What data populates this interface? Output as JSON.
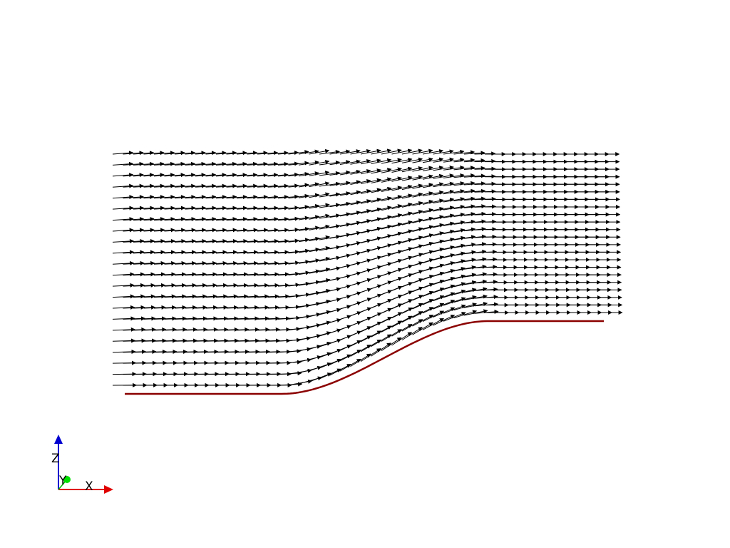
{
  "scene": {
    "background_color": "#ffffff",
    "vector_color": "#000000",
    "surface_color": "#8b0000"
  },
  "orientation_axes": {
    "x": {
      "label": "X",
      "color": "#e00000"
    },
    "y": {
      "label": "Y",
      "color": "#00e000"
    },
    "z": {
      "label": "Z",
      "color": "#0000d0"
    }
  }
}
